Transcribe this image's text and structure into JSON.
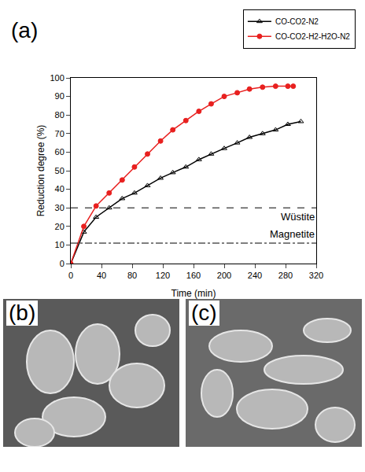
{
  "panel_label": "(a)",
  "chart_data": {
    "type": "line",
    "x_label": "Time (min)",
    "y_label": "Reduction degree (%)",
    "xlim": [
      0,
      320
    ],
    "xticks": [
      0,
      40,
      80,
      120,
      160,
      200,
      240,
      280,
      320
    ],
    "ylim": [
      0,
      100
    ],
    "yticks": [
      0,
      10,
      20,
      30,
      40,
      50,
      60,
      70,
      80,
      90,
      100
    ],
    "grid": false,
    "legend": "top right",
    "series": [
      {
        "name": "CO-CO2-N2",
        "color": "#000000",
        "marker": "triangle-open",
        "line_style": "solid",
        "x": [
          0,
          17,
          33,
          50,
          67,
          83,
          100,
          117,
          133,
          150,
          167,
          183,
          200,
          217,
          233,
          250,
          267,
          283,
          300
        ],
        "values": [
          0,
          17,
          25,
          30,
          35,
          38,
          42,
          46,
          49,
          52,
          56,
          59,
          62,
          65,
          68,
          70,
          72,
          75,
          76.5
        ]
      },
      {
        "name": "CO-CO2-H2-H2O-N2",
        "color": "#e8201f",
        "marker": "circle",
        "line_style": "solid",
        "x": [
          0,
          17,
          33,
          50,
          67,
          83,
          100,
          117,
          133,
          150,
          167,
          183,
          200,
          217,
          233,
          250,
          267,
          283,
          290
        ],
        "values": [
          0,
          20,
          31,
          38,
          45,
          52,
          59,
          66,
          72,
          77,
          82,
          86,
          90,
          92,
          94,
          95,
          95.5,
          95.5,
          95.5
        ]
      }
    ],
    "annotations": [
      {
        "text": "Wüstite",
        "y": 30,
        "line_style": "dash"
      },
      {
        "text": "Magnetite",
        "y": 11,
        "line_style": "dashdot"
      }
    ]
  },
  "images": [
    {
      "label": "(b)"
    },
    {
      "label": "(c)"
    }
  ]
}
